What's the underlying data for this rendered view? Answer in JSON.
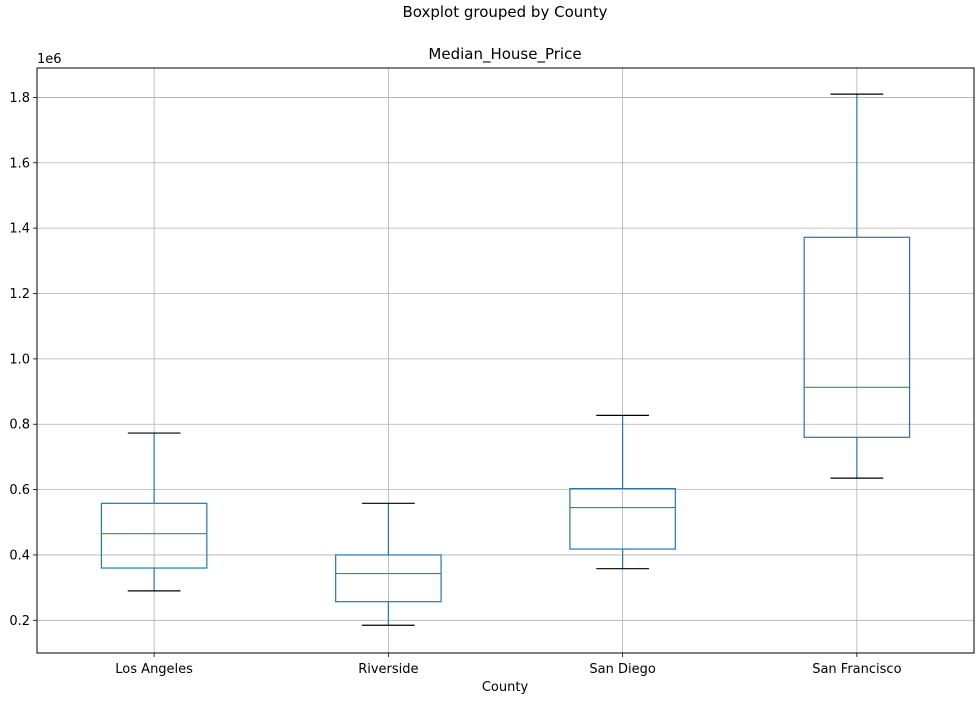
{
  "chart_data": {
    "type": "boxplot",
    "suptitle": "Boxplot grouped by County",
    "title": "Median_House_Price",
    "xlabel": "County",
    "ylabel": "",
    "y_offset_label": "1e6",
    "y_scale_factor": 1000000,
    "ylim": [
      0.1,
      1.89
    ],
    "yticks": [
      0.2,
      0.4,
      0.6,
      0.8,
      1.0,
      1.2,
      1.4,
      1.6,
      1.8
    ],
    "ytick_labels": [
      "0.2",
      "0.4",
      "0.6",
      "0.8",
      "1.0",
      "1.2",
      "1.4",
      "1.6",
      "1.8"
    ],
    "grid": true,
    "categories": [
      "Los Angeles",
      "Riverside",
      "San Diego",
      "San Francisco"
    ],
    "boxes": [
      {
        "category": "Los Angeles",
        "whisker_low": 0.29,
        "q1": 0.36,
        "median": 0.465,
        "q3": 0.558,
        "whisker_high": 0.773
      },
      {
        "category": "Riverside",
        "whisker_low": 0.185,
        "q1": 0.257,
        "median": 0.343,
        "q3": 0.4,
        "whisker_high": 0.558
      },
      {
        "category": "San Diego",
        "whisker_low": 0.358,
        "q1": 0.418,
        "median": 0.545,
        "q3": 0.603,
        "whisker_high": 0.827
      },
      {
        "category": "San Francisco",
        "whisker_low": 0.635,
        "q1": 0.76,
        "median": 0.913,
        "q3": 1.372,
        "whisker_high": 1.81
      }
    ],
    "colors": {
      "box": "#1f77b4",
      "median": "#2ca02c",
      "whisker_cap": "#000000",
      "grid": "#b0b0b0"
    }
  }
}
